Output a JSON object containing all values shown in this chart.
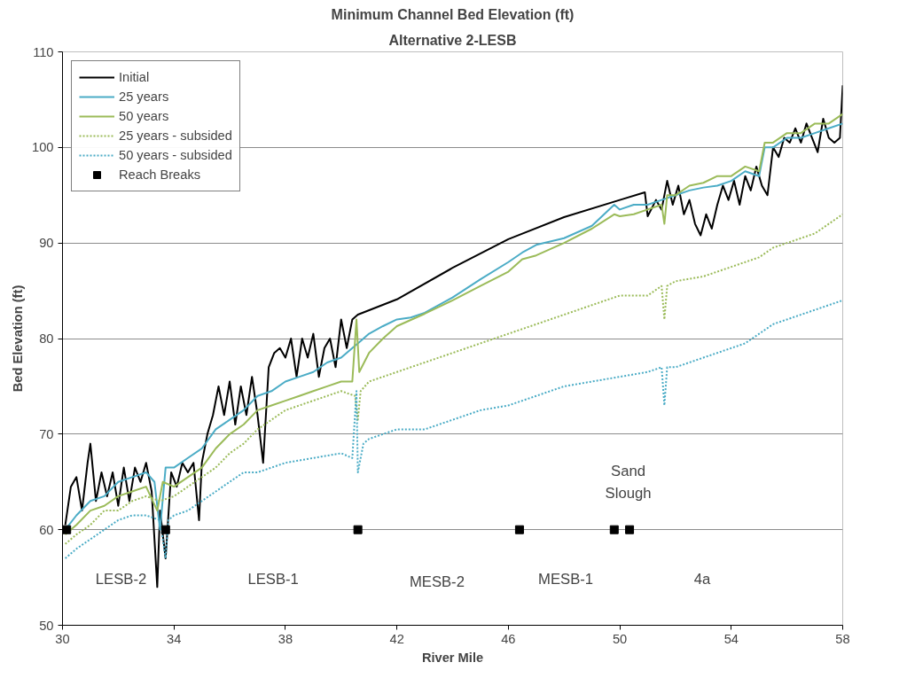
{
  "chart_data": {
    "type": "line",
    "title": "Minimum Channel Bed Elevation (ft)",
    "subtitle": "Alternative 2-LESB",
    "xlabel": "River Mile",
    "ylabel": "Bed Elevation (ft)",
    "xlim": [
      30,
      58
    ],
    "xticks": [
      30,
      34,
      38,
      42,
      46,
      50,
      54,
      58
    ],
    "ylim": [
      50,
      110
    ],
    "yticks": [
      50,
      60,
      70,
      80,
      90,
      100,
      110
    ],
    "grid": "y",
    "legend": "top left",
    "series": [
      {
        "name": "Initial",
        "color": "#000000",
        "line_style": "solid",
        "x": [
          30.1,
          30.3,
          30.5,
          30.7,
          30.9,
          31.0,
          31.2,
          31.4,
          31.6,
          31.8,
          32.0,
          32.2,
          32.4,
          32.6,
          32.8,
          33.0,
          33.2,
          33.4,
          33.5,
          33.7,
          33.9,
          34.1,
          34.3,
          34.5,
          34.7,
          34.9,
          35.0,
          35.2,
          35.4,
          35.6,
          35.8,
          36.0,
          36.2,
          36.4,
          36.6,
          36.8,
          37.0,
          37.2,
          37.4,
          37.6,
          37.8,
          38.0,
          38.2,
          38.4,
          38.6,
          38.8,
          39.0,
          39.2,
          39.4,
          39.6,
          39.8,
          40.0,
          40.2,
          40.4,
          40.6,
          42,
          44,
          46,
          48,
          50,
          50.9,
          51.0,
          51.3,
          51.5,
          51.7,
          51.9,
          52.1,
          52.3,
          52.5,
          52.7,
          52.9,
          53.1,
          53.3,
          53.5,
          53.7,
          53.9,
          54.1,
          54.3,
          54.5,
          54.7,
          54.9,
          55.1,
          55.3,
          55.5,
          55.7,
          55.9,
          56.1,
          56.3,
          56.5,
          56.7,
          56.9,
          57.1,
          57.3,
          57.5,
          57.7,
          57.9,
          58.0
        ],
        "values": [
          60.5,
          64.5,
          65.5,
          62,
          67,
          69,
          63,
          66,
          63.5,
          66,
          62.5,
          66.5,
          63,
          66.5,
          65,
          67,
          64,
          54,
          62,
          57,
          66,
          64.5,
          67,
          66,
          67,
          61,
          67,
          70,
          72,
          75,
          72,
          75.5,
          71,
          75,
          72,
          76,
          72,
          67,
          77,
          78.5,
          79,
          78,
          80,
          76,
          80,
          78,
          80.5,
          76,
          79,
          80,
          77,
          82,
          79,
          82,
          82.5,
          84.1,
          87.4,
          90.4,
          92.7,
          94.5,
          95.3,
          92.8,
          94.5,
          93.5,
          96.5,
          94,
          96,
          93,
          94.5,
          92,
          90.8,
          93,
          91.5,
          94,
          96,
          94.5,
          96.5,
          94,
          97,
          95.5,
          98,
          96,
          95,
          100,
          99,
          101,
          100.5,
          102,
          100.5,
          102.5,
          101,
          99.5,
          103,
          101,
          100.5,
          101,
          106.5
        ]
      },
      {
        "name": "25 years",
        "color": "#4bacc6",
        "line_style": "solid",
        "x": [
          30.1,
          30.5,
          31,
          31.5,
          32,
          32.5,
          33,
          33.3,
          33.5,
          33.7,
          34,
          34.5,
          35,
          35.5,
          36,
          36.5,
          37,
          37.5,
          38,
          38.5,
          39,
          39.5,
          40,
          40.4,
          40.6,
          41,
          41.5,
          42,
          42.5,
          43,
          44,
          45,
          46,
          46.5,
          47,
          48,
          49,
          49.8,
          50,
          50.5,
          51,
          51.5,
          52,
          52.5,
          53,
          53.5,
          54,
          54.5,
          55,
          55.2,
          55.5,
          56,
          56.5,
          57,
          57.5,
          58
        ],
        "values": [
          60,
          61.5,
          63,
          63.5,
          65,
          65.5,
          66,
          65,
          60,
          66.5,
          66.5,
          67.5,
          68.5,
          70.5,
          71.5,
          72.5,
          74,
          74.5,
          75.5,
          76,
          76.5,
          77.5,
          78,
          79,
          79.5,
          80.5,
          81.3,
          82,
          82.2,
          82.7,
          84.3,
          86.2,
          88,
          89,
          89.8,
          90.5,
          91.8,
          94,
          93.5,
          94,
          94,
          94.5,
          95,
          95.5,
          95.8,
          96,
          96.5,
          97.5,
          97,
          100,
          100,
          101,
          101,
          101.5,
          102,
          102.5
        ]
      },
      {
        "name": "50 years",
        "color": "#9bbb59",
        "line_style": "solid",
        "x": [
          30.1,
          30.5,
          31,
          31.5,
          32,
          32.5,
          33,
          33.4,
          33.6,
          34,
          34.5,
          35,
          35.5,
          36,
          36.5,
          37,
          37.5,
          38,
          38.5,
          39,
          39.5,
          40,
          40.4,
          40.55,
          40.65,
          41,
          41.5,
          42,
          43,
          44,
          45,
          46,
          46.5,
          47,
          48,
          49,
          49.8,
          50,
          50.5,
          51,
          51.5,
          51.6,
          51.7,
          52,
          52.5,
          53,
          53.5,
          54,
          54.5,
          55,
          55.2,
          55.5,
          56,
          56.5,
          57,
          57.5,
          58
        ],
        "values": [
          59.5,
          60.5,
          62,
          62.5,
          63.5,
          64,
          64.5,
          62,
          65,
          64.5,
          65.5,
          66.5,
          68.5,
          70,
          71,
          72.5,
          73,
          73.5,
          74,
          74.5,
          75,
          75.5,
          75.5,
          82,
          76.5,
          78.5,
          80,
          81.3,
          82.6,
          84,
          85.5,
          87,
          88.3,
          88.7,
          90,
          91.5,
          93,
          92.8,
          93,
          93.5,
          94,
          92,
          95,
          95,
          96,
          96.3,
          97,
          97,
          98,
          97.5,
          100.5,
          100.5,
          101.5,
          101.5,
          102.5,
          102.5,
          103.5
        ]
      },
      {
        "name": "25 years - subsided",
        "color": "#9bbb59",
        "line_style": "dotted",
        "x": [
          30.1,
          30.5,
          31,
          31.5,
          32,
          32.5,
          33,
          33.5,
          34,
          34.5,
          35,
          35.5,
          36,
          36.5,
          37,
          37.5,
          38,
          38.5,
          39,
          40,
          40.5,
          40.6,
          40.7,
          41,
          42,
          43,
          44,
          45,
          46,
          47,
          48,
          49,
          50,
          51,
          51.5,
          51.6,
          51.7,
          52,
          53,
          54,
          55,
          55.5,
          56,
          57,
          58
        ],
        "values": [
          58.5,
          59.5,
          60.5,
          62,
          62,
          63,
          63.5,
          63,
          63.5,
          64.5,
          65.5,
          66.5,
          68,
          69,
          70.5,
          71.5,
          72.5,
          73,
          73.5,
          74.5,
          74,
          71.5,
          74.5,
          75.5,
          76.5,
          77.5,
          78.5,
          79.5,
          80.5,
          81.5,
          82.5,
          83.5,
          84.5,
          84.5,
          85.5,
          82,
          85.5,
          86,
          86.5,
          87.5,
          88.5,
          89.5,
          90,
          91,
          93
        ]
      },
      {
        "name": "50 years - subsided",
        "color": "#4bacc6",
        "line_style": "dotted",
        "x": [
          30.1,
          30.5,
          31,
          31.5,
          32,
          32.5,
          33,
          33.5,
          33.7,
          33.8,
          34,
          34.5,
          35,
          35.5,
          36,
          36.5,
          37,
          37.5,
          38,
          39,
          40,
          40.4,
          40.55,
          40.6,
          40.8,
          41,
          42,
          43,
          44,
          45,
          46,
          47,
          48,
          49,
          50,
          51,
          51.5,
          51.6,
          51.7,
          52,
          53,
          54,
          54.5,
          55,
          55.5,
          56,
          57,
          58
        ],
        "values": [
          57,
          58,
          59,
          60,
          61,
          61.5,
          61.5,
          61,
          57,
          61,
          61.5,
          62,
          63,
          64,
          65,
          66,
          66,
          66.5,
          67,
          67.5,
          68,
          67.5,
          74.5,
          66,
          69,
          69.5,
          70.5,
          70.5,
          71.5,
          72.5,
          73,
          74,
          75,
          75.5,
          76,
          76.5,
          77,
          73,
          77,
          77,
          78,
          79,
          79.5,
          80.5,
          81.5,
          82,
          83,
          84
        ]
      },
      {
        "name": "Reach Breaks",
        "type": "scatter",
        "marker": "square",
        "color": "#000000",
        "x": [
          30.15,
          33.7,
          40.6,
          46.4,
          49.8,
          50.35
        ],
        "values": [
          60,
          60,
          60,
          60,
          60,
          60
        ]
      }
    ],
    "annotations": [
      "LESB-2",
      "LESB-1",
      "MESB-2",
      "MESB-1",
      "4a",
      "Sand\nSlough"
    ]
  }
}
